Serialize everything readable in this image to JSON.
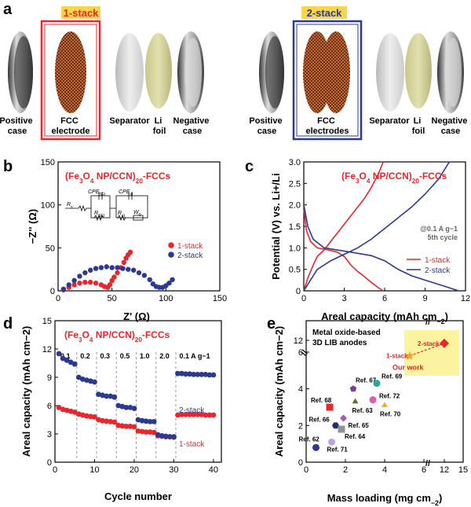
{
  "panel_a": {
    "letter": "a",
    "stack1_label": "1-stack",
    "stack2_label": "2-stack",
    "left": {
      "positive": [
        "Positive",
        "case"
      ],
      "fcc": [
        "FCC",
        "electrode"
      ],
      "separator": "Separator",
      "li": [
        "Li",
        "foil"
      ],
      "negative": [
        "Negative",
        "case"
      ]
    },
    "right": {
      "positive": [
        "Positive",
        "case"
      ],
      "fcc": [
        "FCC",
        "electrodes"
      ],
      "separator": "Separator",
      "li": [
        "Li",
        "foil"
      ],
      "negative": [
        "Negative",
        "case"
      ]
    }
  },
  "chart_data": [
    {
      "id": "b",
      "type": "scatter",
      "panel_letter": "b",
      "title": "(Fe3O4 NP/CCN)20-FCCs",
      "title_parts": [
        "(Fe",
        "3",
        "O",
        "4",
        " NP/CCN)",
        "20",
        "-FCCs"
      ],
      "xlabel": "Z' (Ω)",
      "ylabel": "−Z'' (Ω)",
      "xlim": [
        0,
        150
      ],
      "ylim": [
        0,
        150
      ],
      "xticks": [
        0,
        50,
        100,
        150
      ],
      "yticks": [
        0,
        50,
        100,
        150
      ],
      "circuit_labels": {
        "cpe_sei": "CPE",
        "cpe_sei_sub": "SEI",
        "cpe_dl": "CPE",
        "cpe_dl_sub": "dl",
        "rs": "R",
        "rs_sub": "s",
        "rsei": "R",
        "rsei_sub": "SEI",
        "rct": "R",
        "rct_sub": "ct",
        "wo": "W",
        "wo_sub": "0"
      },
      "legend": [
        "1-stack",
        "2-stack"
      ],
      "series": [
        {
          "name": "1-stack",
          "color": "#e8262b",
          "x": [
            5,
            10,
            15,
            20,
            25,
            30,
            35,
            40,
            43,
            46,
            48,
            50,
            52,
            55,
            58,
            61,
            63,
            65,
            67
          ],
          "y": [
            1,
            4,
            7,
            9,
            10,
            10,
            9,
            7,
            5,
            4,
            7,
            12,
            16,
            21,
            27,
            33,
            38,
            42,
            45
          ]
        },
        {
          "name": "2-stack",
          "color": "#2b3990",
          "x": [
            5,
            10,
            15,
            20,
            25,
            30,
            35,
            40,
            45,
            50,
            55,
            60,
            65,
            70,
            75,
            80,
            85,
            88,
            91,
            94,
            97,
            100,
            103,
            106
          ],
          "y": [
            2,
            7,
            12,
            17,
            21,
            24,
            26,
            27,
            28,
            27,
            27,
            26,
            25,
            24,
            21,
            18,
            13,
            8,
            5,
            4,
            4,
            6,
            9,
            13
          ]
        }
      ]
    },
    {
      "id": "c",
      "type": "line",
      "panel_letter": "c",
      "title": "(Fe3O4 NP/CCN)20-FCCs",
      "title_parts": [
        "(Fe",
        "3",
        "O",
        "4",
        " NP/CCN)",
        "20",
        "-FCCs"
      ],
      "xlabel": "Areal capacity (mAh cm−2)",
      "xlabel_parts": [
        "Areal capacity (mAh cm",
        "−2",
        ")"
      ],
      "ylabel": "Potential (V) vs. Li+/Li",
      "xlim": [
        0,
        12
      ],
      "ylim": [
        0,
        3.0
      ],
      "xticks": [
        0,
        3,
        6,
        9,
        12
      ],
      "yticks": [
        0,
        0.5,
        1.0,
        1.5,
        2.0,
        2.5,
        3.0
      ],
      "ytick_labels": [
        "0",
        "0.5",
        "1.0",
        "1.5",
        "2.0",
        "2.5",
        "3.0"
      ],
      "annotation_rate": "@0.1 A g−1",
      "annotation_cycle": "5th cycle",
      "legend": [
        "1-stack",
        "2-stack"
      ],
      "series": [
        {
          "name": "1-stack discharge",
          "color": "#e8262b",
          "x": [
            0,
            0.2,
            0.5,
            1.0,
            1.5,
            2.0,
            2.5,
            3.0,
            3.5,
            4.0,
            4.5,
            5.0,
            5.5,
            5.9
          ],
          "y": [
            1.9,
            1.4,
            1.15,
            1.0,
            0.97,
            0.94,
            0.9,
            0.8,
            0.6,
            0.45,
            0.33,
            0.2,
            0.08,
            0.0
          ]
        },
        {
          "name": "1-stack charge",
          "color": "#e8262b",
          "x": [
            0,
            0.3,
            0.7,
            1.0,
            1.5,
            2.0,
            2.5,
            3.0,
            3.5,
            4.0,
            4.5,
            5.0,
            5.5,
            5.9
          ],
          "y": [
            0.0,
            0.3,
            0.6,
            0.8,
            0.95,
            1.15,
            1.35,
            1.55,
            1.75,
            1.95,
            2.15,
            2.4,
            2.7,
            3.0
          ]
        },
        {
          "name": "2-stack discharge",
          "color": "#2b3990",
          "x": [
            0,
            0.3,
            0.7,
            1.5,
            2.5,
            3.5,
            5.0,
            6.0,
            7.0,
            8.0,
            9.0,
            10.0,
            11.0,
            11.5
          ],
          "y": [
            2.0,
            1.5,
            1.2,
            1.0,
            0.95,
            0.9,
            0.82,
            0.7,
            0.5,
            0.35,
            0.25,
            0.15,
            0.05,
            0.0
          ]
        },
        {
          "name": "2-stack charge",
          "color": "#2b3990",
          "x": [
            0,
            0.5,
            1.0,
            2.0,
            3.0,
            4.0,
            5.0,
            6.0,
            7.0,
            8.0,
            9.0,
            10.0,
            10.8
          ],
          "y": [
            0.0,
            0.25,
            0.5,
            0.7,
            0.85,
            1.0,
            1.2,
            1.45,
            1.7,
            1.95,
            2.25,
            2.6,
            3.0
          ]
        }
      ]
    },
    {
      "id": "d",
      "type": "scatter",
      "panel_letter": "d",
      "title": "(Fe3O4 NP/CCN)20-FCCs",
      "title_parts": [
        "(Fe",
        "3",
        "O",
        "4",
        " NP/CCN)",
        "20",
        "-FCCs"
      ],
      "xlabel": "Cycle number",
      "ylabel": "Areal capacity (mAh cm−2)",
      "xlim": [
        0,
        42
      ],
      "ylim": [
        0,
        15
      ],
      "xticks": [
        0,
        10,
        20,
        30,
        40
      ],
      "yticks": [
        0,
        3,
        6,
        9,
        12,
        15
      ],
      "rate_labels": [
        "0.1",
        "0.2",
        "0.3",
        "0.5",
        "1.0",
        "2.0",
        "0.1 A g−1"
      ],
      "rate_x": [
        1,
        6,
        11,
        16,
        21,
        26,
        31
      ],
      "legend": [
        "1-stack",
        "2-stack"
      ],
      "series": [
        {
          "name": "1-stack",
          "color": "#e8262b",
          "x": [
            1,
            2,
            3,
            4,
            5,
            6,
            7,
            8,
            9,
            10,
            11,
            12,
            13,
            14,
            15,
            16,
            17,
            18,
            19,
            20,
            21,
            22,
            23,
            24,
            25,
            26,
            27,
            28,
            29,
            30,
            31,
            32,
            33,
            34,
            35,
            36,
            37,
            38,
            39,
            40
          ],
          "y": [
            5.8,
            5.6,
            5.5,
            5.4,
            5.3,
            5.1,
            5.0,
            4.9,
            4.85,
            4.8,
            4.5,
            4.4,
            4.35,
            4.3,
            4.25,
            3.9,
            3.85,
            3.8,
            3.8,
            3.75,
            3.3,
            3.25,
            3.2,
            3.2,
            3.15,
            2.8,
            2.75,
            2.7,
            2.7,
            2.65,
            5.0,
            5.05,
            5.05,
            5.05,
            5.05,
            5.05,
            5.05,
            5.0,
            5.0,
            5.0
          ]
        },
        {
          "name": "2-stack",
          "color": "#2b3990",
          "x": [
            1,
            2,
            3,
            4,
            5,
            6,
            7,
            8,
            9,
            10,
            11,
            12,
            13,
            14,
            15,
            16,
            17,
            18,
            19,
            20,
            21,
            22,
            23,
            24,
            25,
            26,
            27,
            28,
            29,
            30,
            31,
            32,
            33,
            34,
            35,
            36,
            37,
            38,
            39,
            40
          ],
          "y": [
            11.5,
            11.0,
            10.8,
            10.6,
            10.4,
            9.0,
            8.8,
            8.7,
            8.6,
            8.5,
            7.2,
            7.1,
            7.0,
            7.0,
            6.9,
            6.0,
            5.9,
            5.8,
            5.8,
            5.7,
            4.5,
            4.4,
            4.35,
            4.3,
            4.3,
            2.9,
            2.8,
            2.75,
            2.7,
            2.7,
            9.4,
            9.4,
            9.35,
            9.35,
            9.3,
            9.3,
            9.3,
            9.3,
            9.25,
            9.25
          ]
        }
      ]
    },
    {
      "id": "e",
      "type": "scatter",
      "panel_letter": "e",
      "title": "Metal oxide-based 3D LIB anodes",
      "title_lines": [
        "Metal oxide-based",
        "3D LIB anodes"
      ],
      "xlabel": "Mass loading (mg cm−2)",
      "xlabel_parts": [
        "Mass loading (mg cm",
        "−2",
        ")"
      ],
      "ylabel": "Areal capacity (mAh cm−2)",
      "xticks": [
        0,
        2,
        4,
        6,
        12,
        15
      ],
      "yticks": [
        0,
        2,
        4,
        6,
        12
      ],
      "points": [
        {
          "label": "Ref. 62",
          "x": 0.5,
          "y": 0.8,
          "color": "#2b3990",
          "shape": "circle"
        },
        {
          "label": "Ref. 71",
          "x": 1.3,
          "y": 1.1,
          "color": "#c0a0e0",
          "shape": "circle"
        },
        {
          "label": "Ref. 66",
          "x": 1.5,
          "y": 2.0,
          "color": "#1f2d6e",
          "shape": "hexagon"
        },
        {
          "label": "Ref. 68",
          "x": 1.2,
          "y": 3.0,
          "color": "#e8262b",
          "shape": "square"
        },
        {
          "label": "Ref. 65",
          "x": 1.9,
          "y": 2.4,
          "color": "#b050c0",
          "shape": "diamond"
        },
        {
          "label": "Ref. 64",
          "x": 1.8,
          "y": 1.8,
          "color": "#909090",
          "shape": "square"
        },
        {
          "label": "Ref. 67",
          "x": 2.4,
          "y": 4.0,
          "color": "#7a3aa0",
          "shape": "pentagon"
        },
        {
          "label": "Ref. 63",
          "x": 2.5,
          "y": 3.3,
          "color": "#6b6b2a",
          "shape": "triangle"
        },
        {
          "label": "Ref. 69",
          "x": 3.6,
          "y": 4.3,
          "color": "#2aa5a0",
          "shape": "circle"
        },
        {
          "label": "Ref. 72",
          "x": 3.4,
          "y": 3.4,
          "color": "#e05ab0",
          "shape": "circle"
        },
        {
          "label": "Ref. 70",
          "x": 4.0,
          "y": 3.1,
          "color": "#f5a623",
          "shape": "triangle"
        }
      ],
      "our_work": {
        "label": "Our work",
        "one_stack": "1-stack",
        "two_stack": "2-stack",
        "x1": 6.5,
        "y1": 5.8,
        "x2": 12.0,
        "y2": 11.5,
        "color": "#e8262b",
        "star_color": "#f5a623"
      }
    }
  ]
}
